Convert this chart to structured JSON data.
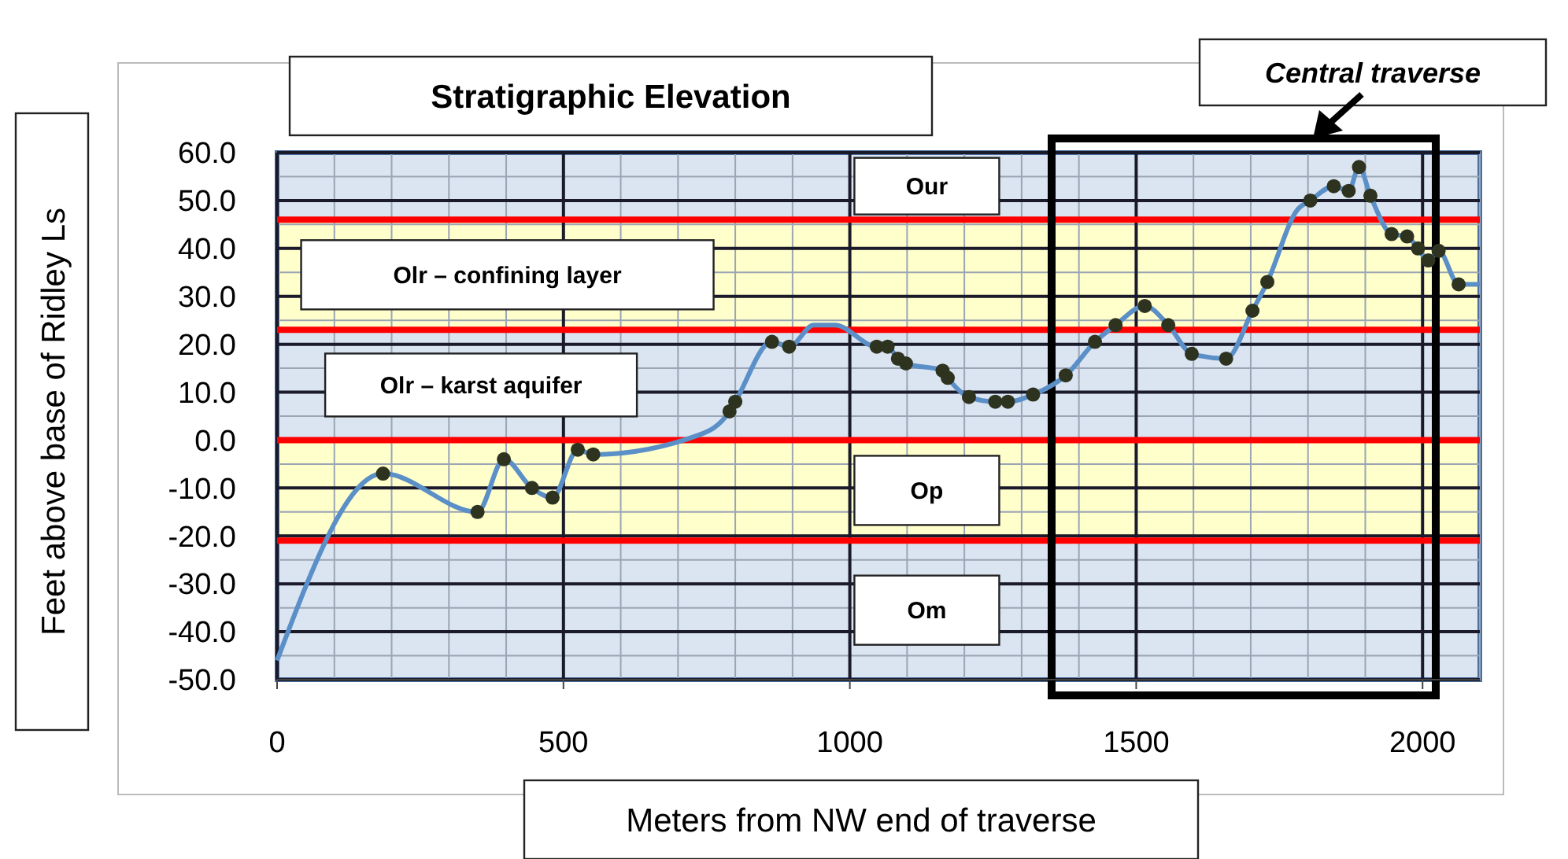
{
  "chart_data": {
    "type": "line",
    "title": "Stratigraphic  Elevation",
    "xlabel": "Meters from NW end of traverse",
    "ylabel": "Feet above base of Ridley Ls",
    "xlim": [
      0,
      2100
    ],
    "xticks": [
      0,
      500,
      1000,
      1500,
      2000
    ],
    "ylim": [
      -50,
      60
    ],
    "yticks": [
      {
        "value": -50,
        "label": "-50.0"
      },
      {
        "value": -40,
        "label": "-40.0"
      },
      {
        "value": -30,
        "label": "-30.0"
      },
      {
        "value": -20,
        "label": "-20.0"
      },
      {
        "value": -10,
        "label": "-10.0"
      },
      {
        "value": 0,
        "label": "0.0"
      },
      {
        "value": 10,
        "label": "10.0"
      },
      {
        "value": 20,
        "label": "20.0"
      },
      {
        "value": 30,
        "label": "30.0"
      },
      {
        "value": 40,
        "label": "40.0"
      },
      {
        "value": 50,
        "label": "50.0"
      },
      {
        "value": 60,
        "label": "60.0"
      }
    ],
    "grid": true,
    "series": [
      {
        "color": "#5b8fc7",
        "marker": "none",
        "x": [
          0,
          185,
          350,
          396,
          445,
          481,
          525,
          552,
          735,
          790,
          800,
          864,
          894,
          937,
          974,
          1047,
          1066,
          1084,
          1098,
          1162,
          1171,
          1208,
          1254,
          1276,
          1320,
          1377,
          1428,
          1464,
          1515,
          1556,
          1597,
          1657,
          1703,
          1729,
          1781,
          1804,
          1845,
          1871,
          1889,
          1909,
          1946,
          1973,
          1992,
          2010,
          2028,
          2063,
          2100
        ],
        "values": [
          -46,
          -7,
          -15,
          -4,
          -10,
          -12,
          -2,
          -3,
          1,
          6,
          8,
          20.5,
          19.5,
          24,
          24,
          19.5,
          19.5,
          17,
          16,
          14.5,
          13,
          9,
          8,
          8,
          9.5,
          13.5,
          20.5,
          24,
          28,
          24,
          18,
          17,
          27,
          33,
          48,
          50,
          53,
          52,
          57,
          51,
          43,
          42.5,
          40,
          37.5,
          39.5,
          32.5,
          32.5
        ]
      },
      {
        "type": "scatter",
        "color": "#2e3320",
        "marker": "circle",
        "x": [
          185,
          350,
          396,
          445,
          481,
          525,
          552,
          790,
          800,
          864,
          894,
          1047,
          1066,
          1084,
          1098,
          1162,
          1171,
          1208,
          1254,
          1276,
          1320,
          1377,
          1428,
          1464,
          1515,
          1556,
          1597,
          1657,
          1703,
          1729,
          1804,
          1845,
          1871,
          1889,
          1909,
          1946,
          1973,
          1992,
          2010,
          2028,
          2063
        ],
        "values": [
          -7,
          -15,
          -4,
          -10,
          -12,
          -2,
          -3,
          6,
          8,
          20.5,
          19.5,
          19.5,
          19.5,
          17,
          16,
          14.5,
          13,
          9,
          8,
          8,
          9.5,
          13.5,
          20.5,
          24,
          28,
          24,
          18,
          17,
          27,
          33,
          50,
          53,
          52,
          57,
          51,
          43,
          42.5,
          40,
          37.5,
          39.5,
          32.5
        ]
      }
    ],
    "bands": [
      {
        "axis": "y",
        "from": 46,
        "to": 60,
        "label": "Our",
        "color": "#dbe5f1"
      },
      {
        "axis": "y",
        "from": 23,
        "to": 46,
        "label": "Olr – confining layer",
        "color": "#ffffcc"
      },
      {
        "axis": "y",
        "from": 0,
        "to": 23,
        "label": "Olr – karst aquifer",
        "color": "#dbe5f1"
      },
      {
        "axis": "y",
        "from": -21,
        "to": 0,
        "label": "Op",
        "color": "#ffffcc"
      },
      {
        "axis": "y",
        "from": -50,
        "to": -21,
        "label": "Om",
        "color": "#dbe5f1"
      }
    ],
    "annotations": [
      "Central traverse"
    ],
    "ref_lines": [
      {
        "axis": "y",
        "value": 46,
        "color": "#ff0000"
      },
      {
        "axis": "y",
        "value": 23,
        "color": "#ff0000"
      },
      {
        "axis": "y",
        "value": 0,
        "color": "#ff0000"
      },
      {
        "axis": "y",
        "value": -21,
        "color": "#ff0000"
      }
    ]
  }
}
